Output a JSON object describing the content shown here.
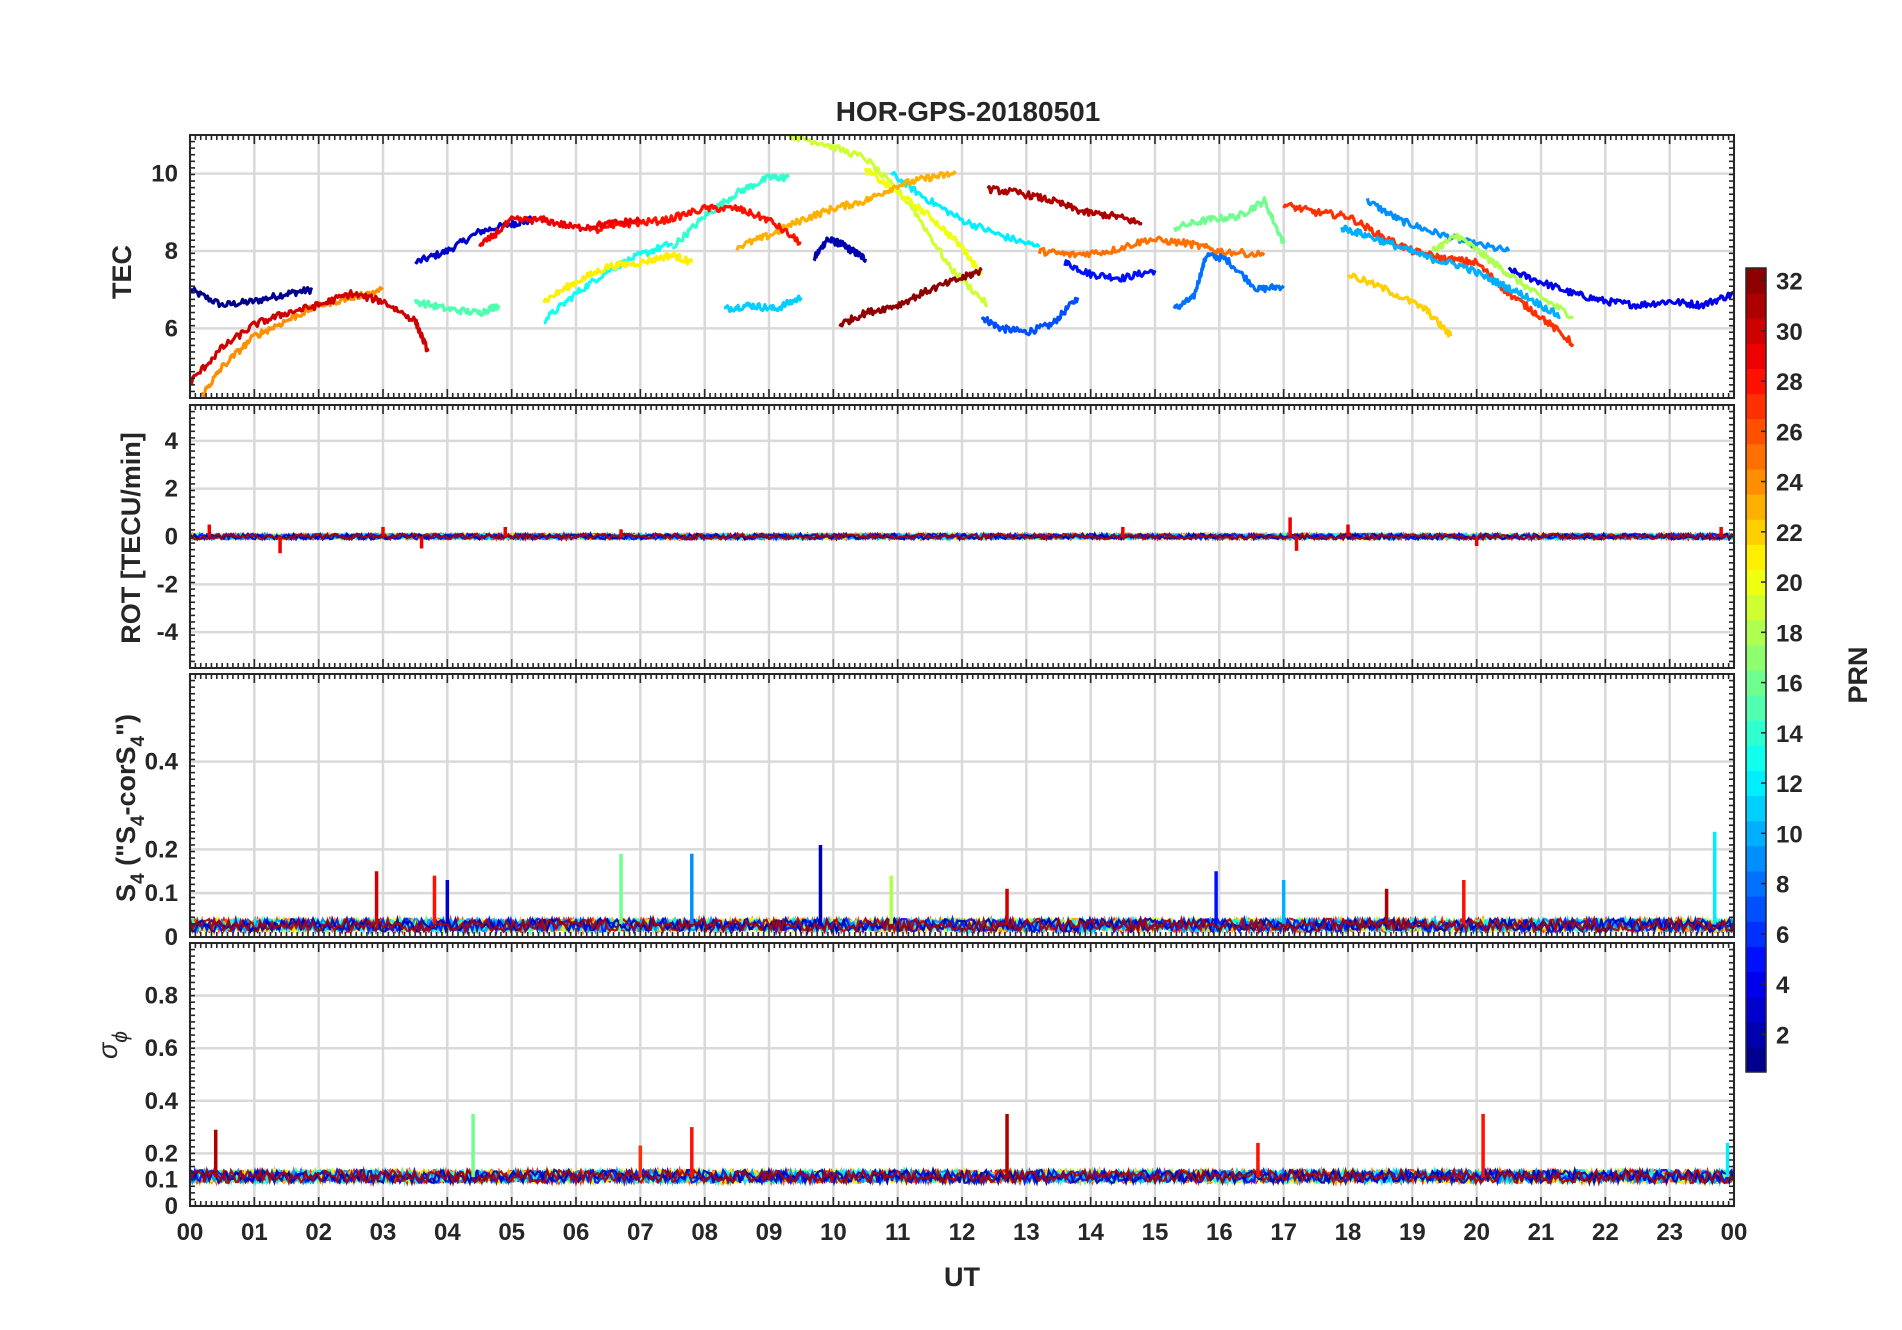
{
  "chart_data": [
    {
      "type": "line",
      "title": "HOR-GPS-20180501",
      "ylabel": "TEC",
      "xlim": [
        0,
        24
      ],
      "ylim": [
        4.2,
        11
      ],
      "yticks": [
        6,
        8,
        10
      ],
      "grid": "on",
      "series": [
        {
          "prn": 1,
          "x": [
            0,
            0.5,
            1,
            1.5,
            1.9
          ],
          "y": [
            7.0,
            6.6,
            6.7,
            6.9,
            7.0
          ]
        },
        {
          "prn": 3,
          "x": [
            3.5,
            4,
            4.5,
            5,
            5.3
          ],
          "y": [
            7.7,
            8.0,
            8.5,
            8.7,
            8.8
          ]
        },
        {
          "prn": 2,
          "x": [
            9.7,
            9.9,
            10.1,
            10.3,
            10.5
          ],
          "y": [
            7.8,
            8.3,
            8.2,
            8.0,
            7.8
          ]
        },
        {
          "prn": 7,
          "x": [
            12.3,
            12.6,
            13,
            13.4,
            13.8
          ],
          "y": [
            6.3,
            6.0,
            5.9,
            6.1,
            6.8
          ]
        },
        {
          "prn": 5,
          "x": [
            13.6,
            14,
            14.5,
            15
          ],
          "y": [
            7.7,
            7.4,
            7.3,
            7.5
          ]
        },
        {
          "prn": 8,
          "x": [
            15.3,
            15.6,
            15.8,
            16.1,
            16.6,
            17
          ],
          "y": [
            6.5,
            6.8,
            7.9,
            7.8,
            7.0,
            7.1
          ]
        },
        {
          "prn": 9,
          "x": [
            18.3,
            18.8,
            19.3,
            19.9,
            20.5
          ],
          "y": [
            9.3,
            8.8,
            8.5,
            8.2,
            8.0
          ]
        },
        {
          "prn": 4,
          "x": [
            20.5,
            21,
            21.5,
            22,
            22.5,
            23,
            23.5,
            24
          ],
          "y": [
            7.5,
            7.2,
            6.9,
            6.7,
            6.6,
            6.7,
            6.6,
            6.9
          ]
        },
        {
          "prn": 11,
          "x": [
            8.3,
            8.7,
            9.1,
            9.5
          ],
          "y": [
            6.5,
            6.6,
            6.5,
            6.8
          ]
        },
        {
          "prn": 13,
          "x": [
            5.5,
            6,
            6.5,
            7,
            7.5
          ],
          "y": [
            6.2,
            6.9,
            7.5,
            7.9,
            8.2
          ]
        },
        {
          "prn": 12,
          "x": [
            10.9,
            11.4,
            12,
            12.6,
            13.2
          ],
          "y": [
            10.0,
            9.4,
            8.8,
            8.4,
            8.1
          ]
        },
        {
          "prn": 14,
          "x": [
            7.5,
            8,
            8.5,
            9,
            9.3
          ],
          "y": [
            8.1,
            8.9,
            9.5,
            9.9,
            9.9
          ]
        },
        {
          "prn": 16,
          "x": [
            15.3,
            15.8,
            16.3,
            16.7,
            17
          ],
          "y": [
            8.6,
            8.8,
            8.9,
            9.3,
            8.2
          ]
        },
        {
          "prn": 15,
          "x": [
            3.5,
            4,
            4.5,
            4.8
          ],
          "y": [
            6.7,
            6.5,
            6.4,
            6.6
          ]
        },
        {
          "prn": 19,
          "x": [
            9.3,
            9.8,
            10.5,
            11.2,
            11.8,
            12.4
          ],
          "y": [
            11.0,
            10.8,
            10.4,
            9.2,
            7.6,
            6.6
          ]
        },
        {
          "prn": 18,
          "x": [
            19.3,
            19.7,
            20.1,
            20.5,
            21,
            21.5
          ],
          "y": [
            8.0,
            8.4,
            7.9,
            7.4,
            6.8,
            6.3
          ]
        },
        {
          "prn": 21,
          "x": [
            5.5,
            6,
            6.5,
            7,
            7.5,
            7.8
          ],
          "y": [
            6.7,
            7.2,
            7.6,
            7.7,
            7.9,
            7.7
          ]
        },
        {
          "prn": 20,
          "x": [
            10.5,
            11,
            11.5,
            12,
            12.3
          ],
          "y": [
            10.1,
            9.5,
            8.9,
            8.1,
            7.4
          ]
        },
        {
          "prn": 23,
          "x": [
            8.5,
            9,
            9.5,
            10,
            10.5,
            11,
            11.5,
            11.9
          ],
          "y": [
            8.1,
            8.4,
            8.8,
            9.1,
            9.3,
            9.7,
            9.9,
            10.0
          ]
        },
        {
          "prn": 24,
          "x": [
            0.2,
            0.5,
            1,
            1.5,
            2,
            2.5,
            3
          ],
          "y": [
            4.3,
            5.0,
            5.8,
            6.2,
            6.6,
            6.8,
            7.0
          ]
        },
        {
          "prn": 25,
          "x": [
            13.2,
            13.7,
            14.3,
            14.9,
            15.5,
            16,
            16.7
          ],
          "y": [
            8.0,
            7.9,
            8.0,
            8.3,
            8.2,
            8.0,
            7.9
          ]
        },
        {
          "prn": 27,
          "x": [
            17,
            17.5,
            18,
            18.5,
            19,
            19.5,
            20,
            20.5,
            21,
            21.5
          ],
          "y": [
            9.2,
            9.0,
            8.9,
            8.4,
            8.0,
            7.8,
            7.7,
            6.9,
            6.3,
            5.6
          ]
        },
        {
          "prn": 28,
          "x": [
            6.2,
            6.8,
            7.4,
            8,
            8.5,
            9,
            9.5
          ],
          "y": [
            8.5,
            8.7,
            8.8,
            9.1,
            9.1,
            8.8,
            8.2
          ]
        },
        {
          "prn": 29,
          "x": [
            4.5,
            5,
            5.5,
            6,
            6.5,
            7
          ],
          "y": [
            8.1,
            8.8,
            8.8,
            8.6,
            8.7,
            8.8
          ]
        },
        {
          "prn": 30,
          "x": [
            0,
            0.5,
            1,
            1.5,
            2,
            2.5,
            3,
            3.5,
            3.7
          ],
          "y": [
            4.6,
            5.5,
            6.1,
            6.4,
            6.6,
            6.9,
            6.7,
            6.2,
            5.4
          ]
        },
        {
          "prn": 31,
          "x": [
            12.4,
            12.9,
            13.4,
            13.9,
            14.4,
            14.8
          ],
          "y": [
            9.6,
            9.5,
            9.3,
            9.0,
            8.9,
            8.7
          ]
        },
        {
          "prn": 32,
          "x": [
            10.1,
            10.5,
            11,
            11.5,
            12,
            12.3
          ],
          "y": [
            6.1,
            6.4,
            6.6,
            7.0,
            7.3,
            7.5
          ]
        },
        {
          "prn": 10,
          "x": [
            17.9,
            18.3,
            18.8,
            19.3,
            19.8,
            20.3,
            20.8,
            21.3
          ],
          "y": [
            8.6,
            8.4,
            8.1,
            7.8,
            7.6,
            7.2,
            6.8,
            6.3
          ]
        },
        {
          "prn": 22,
          "x": [
            18,
            18.6,
            19.2,
            19.6
          ],
          "y": [
            7.4,
            7.0,
            6.5,
            5.8
          ]
        }
      ]
    },
    {
      "type": "line",
      "ylabel": "ROT [TECU/min]",
      "xlim": [
        0,
        24
      ],
      "ylim": [
        -5.5,
        5.5
      ],
      "yticks": [
        -4,
        -2,
        0,
        2,
        4
      ],
      "grid": "on",
      "baseline": 0,
      "typical_amplitude": 0.12,
      "spikes": [
        {
          "x": 0.3,
          "y": 0.5
        },
        {
          "x": 1.4,
          "y": -0.7
        },
        {
          "x": 3.0,
          "y": 0.4
        },
        {
          "x": 3.6,
          "y": -0.5
        },
        {
          "x": 4.9,
          "y": 0.4
        },
        {
          "x": 6.7,
          "y": 0.3
        },
        {
          "x": 14.5,
          "y": 0.4
        },
        {
          "x": 17.1,
          "y": 0.8
        },
        {
          "x": 17.2,
          "y": -0.6
        },
        {
          "x": 18.0,
          "y": 0.5
        },
        {
          "x": 20.0,
          "y": -0.4
        },
        {
          "x": 23.8,
          "y": 0.4
        }
      ]
    },
    {
      "type": "line",
      "ylabel": "S4 (\"S4-corS4\")",
      "xlim": [
        0,
        24
      ],
      "ylim": [
        0,
        0.6
      ],
      "yticks": [
        0,
        0.1,
        0.2,
        0.4
      ],
      "grid": "on",
      "baseline": 0.03,
      "spikes": [
        {
          "x": 2.9,
          "y": 0.15,
          "prn": 30
        },
        {
          "x": 3.8,
          "y": 0.14,
          "prn": 28
        },
        {
          "x": 4.0,
          "y": 0.13,
          "prn": 3
        },
        {
          "x": 6.7,
          "y": 0.19,
          "prn": 16
        },
        {
          "x": 7.8,
          "y": 0.19,
          "prn": 9
        },
        {
          "x": 9.8,
          "y": 0.21,
          "prn": 2
        },
        {
          "x": 10.9,
          "y": 0.14,
          "prn": 18
        },
        {
          "x": 12.7,
          "y": 0.11,
          "prn": 30
        },
        {
          "x": 15.95,
          "y": 0.15,
          "prn": 5
        },
        {
          "x": 17.0,
          "y": 0.13,
          "prn": 10
        },
        {
          "x": 18.6,
          "y": 0.11,
          "prn": 31
        },
        {
          "x": 19.8,
          "y": 0.13,
          "prn": 28
        },
        {
          "x": 23.7,
          "y": 0.24,
          "prn": 12
        }
      ]
    },
    {
      "type": "line",
      "ylabel": "σ ϕ",
      "xlabel": "UT",
      "xlim": [
        0,
        24
      ],
      "ylim": [
        0,
        1
      ],
      "yticks": [
        0,
        0.1,
        0.2,
        0.4,
        0.6,
        0.8
      ],
      "xticks": [
        "00",
        "01",
        "02",
        "03",
        "04",
        "05",
        "06",
        "07",
        "08",
        "09",
        "10",
        "11",
        "12",
        "13",
        "14",
        "15",
        "16",
        "17",
        "18",
        "19",
        "20",
        "21",
        "22",
        "23",
        "00"
      ],
      "grid": "on",
      "baseline": 0.11,
      "spikes": [
        {
          "x": 0.4,
          "y": 0.29,
          "prn": 31
        },
        {
          "x": 4.4,
          "y": 0.35,
          "prn": 16
        },
        {
          "x": 7.0,
          "y": 0.23,
          "prn": 27
        },
        {
          "x": 7.8,
          "y": 0.3,
          "prn": 28
        },
        {
          "x": 12.7,
          "y": 0.35,
          "prn": 31
        },
        {
          "x": 16.6,
          "y": 0.24,
          "prn": 28
        },
        {
          "x": 20.1,
          "y": 0.35,
          "prn": 28
        },
        {
          "x": 23.9,
          "y": 0.24,
          "prn": 12
        }
      ]
    }
  ],
  "colorbar": {
    "label": "PRN",
    "range": [
      1,
      32
    ],
    "ticks": [
      2,
      4,
      6,
      8,
      10,
      12,
      14,
      16,
      18,
      20,
      22,
      24,
      26,
      28,
      30,
      32
    ],
    "colormap": "jet"
  },
  "labels": {
    "title": "HOR-GPS-20180501",
    "tec_ylabel": "TEC",
    "rot_ylabel": "ROT [TECU/min]",
    "s4_ylabel": {
      "s": "S",
      "sub4": "4",
      "open": " (\"S",
      "sub4b": "4",
      "mid": "-corS",
      "sub4c": "4",
      "close": "\")"
    },
    "sigma_ylabel": {
      "sigma": "σ",
      "phi": "ϕ"
    },
    "xlabel": "UT",
    "colorbar_label": "PRN"
  }
}
